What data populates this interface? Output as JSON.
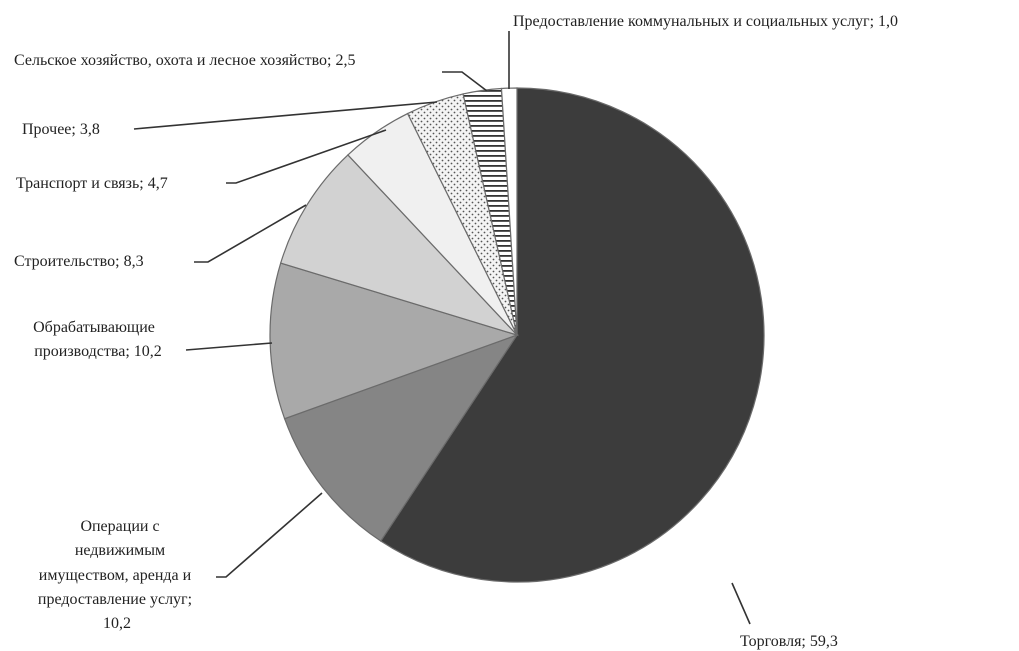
{
  "chart_data": {
    "type": "pie",
    "title": "",
    "start": "12 o'clock, clockwise",
    "slices": [
      {
        "label": "Торговля; 59,3",
        "name": "Торговля",
        "value": 59.3,
        "color": "#3c3c3c",
        "pattern": "solid"
      },
      {
        "label": "Операции с недвижимым имуществом, аренда и предоставление услуг; 10,2",
        "name": "Операции с недвижимым имуществом, аренда и предоставление услуг",
        "value": 10.2,
        "color": "#858585",
        "pattern": "solid"
      },
      {
        "label": "Обрабатывающие производства; 10,2",
        "name": "Обрабатывающие производства",
        "value": 10.2,
        "color": "#a9a9a9",
        "pattern": "solid"
      },
      {
        "label": "Строительство; 8,3",
        "name": "Строительство",
        "value": 8.3,
        "color": "#d2d2d2",
        "pattern": "solid"
      },
      {
        "label": "Транспорт и связь; 4,7",
        "name": "Транспорт и связь",
        "value": 4.7,
        "color": "#f0f0f0",
        "pattern": "solid"
      },
      {
        "label": "Прочее; 3,8",
        "name": "Прочее",
        "value": 3.8,
        "color": "#f4f4f4",
        "pattern": "dots"
      },
      {
        "label": "Сельское хозяйство, охота и лесное хозяйство; 2,5",
        "name": "Сельское хозяйство, охота и лесное хозяйство",
        "value": 2.5,
        "color": "#ffffff",
        "pattern": "horizontal-lines"
      },
      {
        "label": "Предоставление коммунальных и социальных услуг; 1,0",
        "name": "Предоставление коммунальных и социальных услуг",
        "value": 1.0,
        "color": "#ffffff",
        "pattern": "solid"
      }
    ]
  }
}
